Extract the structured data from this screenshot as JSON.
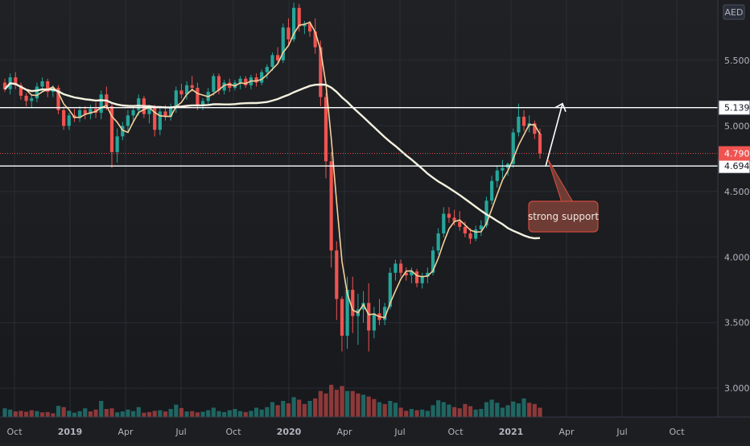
{
  "chart_data": {
    "type": "candlestick",
    "currency": "AED",
    "x_ticks": [
      "Oct",
      "2019",
      "Apr",
      "Jul",
      "Oct",
      "2020",
      "Apr",
      "Jul",
      "Oct",
      "2021",
      "Apr",
      "Jul",
      "Oct"
    ],
    "y_ticks": [
      "5.500",
      "5.000",
      "4.500",
      "4.000",
      "3.500",
      "3.000"
    ],
    "ylim": [
      2.78,
      5.96
    ],
    "horizontal_levels": [
      {
        "value": 5.139,
        "label": "5.139"
      },
      {
        "value": 4.694,
        "label": "4.694"
      }
    ],
    "last_price": {
      "value": 4.79,
      "label": "4.790"
    },
    "annotation": {
      "text": "strong support"
    },
    "candles": [
      [
        5.33,
        5.36,
        5.26,
        5.28
      ],
      [
        5.28,
        5.4,
        5.24,
        5.37
      ],
      [
        5.37,
        5.41,
        5.28,
        5.31
      ],
      [
        5.31,
        5.33,
        5.2,
        5.23
      ],
      [
        5.23,
        5.25,
        5.15,
        5.19
      ],
      [
        5.19,
        5.23,
        5.14,
        5.21
      ],
      [
        5.21,
        5.33,
        5.18,
        5.3
      ],
      [
        5.3,
        5.37,
        5.26,
        5.34
      ],
      [
        5.34,
        5.36,
        5.22,
        5.26
      ],
      [
        5.26,
        5.31,
        5.22,
        5.29
      ],
      [
        5.29,
        5.31,
        5.09,
        5.12
      ],
      [
        5.12,
        5.15,
        4.97,
        5.0
      ],
      [
        5.0,
        5.1,
        4.97,
        5.08
      ],
      [
        5.08,
        5.13,
        5.03,
        5.06
      ],
      [
        5.06,
        5.15,
        5.03,
        5.12
      ],
      [
        5.12,
        5.15,
        5.05,
        5.09
      ],
      [
        5.09,
        5.16,
        5.05,
        5.13
      ],
      [
        5.13,
        5.18,
        5.06,
        5.1
      ],
      [
        5.1,
        5.27,
        5.05,
        5.24
      ],
      [
        5.24,
        5.3,
        5.12,
        5.15
      ],
      [
        5.15,
        5.17,
        4.68,
        4.8
      ],
      [
        4.8,
        4.98,
        4.72,
        4.92
      ],
      [
        4.92,
        5.03,
        4.89,
        5.0
      ],
      [
        5.0,
        5.12,
        4.95,
        5.08
      ],
      [
        5.08,
        5.16,
        5.02,
        5.12
      ],
      [
        5.12,
        5.24,
        5.08,
        5.21
      ],
      [
        5.21,
        5.23,
        5.06,
        5.09
      ],
      [
        5.09,
        5.16,
        5.02,
        5.14
      ],
      [
        5.14,
        5.16,
        4.92,
        4.97
      ],
      [
        4.97,
        5.14,
        4.93,
        5.11
      ],
      [
        5.11,
        5.16,
        5.04,
        5.07
      ],
      [
        5.07,
        5.17,
        5.04,
        5.14
      ],
      [
        5.14,
        5.3,
        5.1,
        5.27
      ],
      [
        5.27,
        5.32,
        5.21,
        5.24
      ],
      [
        5.24,
        5.34,
        5.2,
        5.31
      ],
      [
        5.31,
        5.38,
        5.26,
        5.29
      ],
      [
        5.29,
        5.33,
        5.12,
        5.15
      ],
      [
        5.15,
        5.21,
        5.12,
        5.19
      ],
      [
        5.19,
        5.29,
        5.16,
        5.26
      ],
      [
        5.26,
        5.4,
        5.23,
        5.38
      ],
      [
        5.38,
        5.4,
        5.24,
        5.27
      ],
      [
        5.27,
        5.35,
        5.24,
        5.33
      ],
      [
        5.33,
        5.36,
        5.26,
        5.29
      ],
      [
        5.29,
        5.35,
        5.27,
        5.33
      ],
      [
        5.33,
        5.38,
        5.28,
        5.36
      ],
      [
        5.36,
        5.38,
        5.29,
        5.31
      ],
      [
        5.31,
        5.39,
        5.28,
        5.37
      ],
      [
        5.37,
        5.4,
        5.3,
        5.33
      ],
      [
        5.33,
        5.43,
        5.31,
        5.41
      ],
      [
        5.41,
        5.47,
        5.36,
        5.45
      ],
      [
        5.45,
        5.56,
        5.42,
        5.54
      ],
      [
        5.54,
        5.6,
        5.47,
        5.5
      ],
      [
        5.5,
        5.78,
        5.48,
        5.75
      ],
      [
        5.75,
        5.82,
        5.62,
        5.66
      ],
      [
        5.66,
        5.94,
        5.64,
        5.9
      ],
      [
        5.9,
        5.93,
        5.72,
        5.76
      ],
      [
        5.76,
        5.8,
        5.7,
        5.78
      ],
      [
        5.78,
        5.8,
        5.68,
        5.72
      ],
      [
        5.72,
        5.82,
        5.55,
        5.6
      ],
      [
        5.6,
        5.65,
        5.15,
        5.22
      ],
      [
        5.22,
        5.25,
        4.6,
        4.73
      ],
      [
        4.73,
        4.8,
        3.92,
        4.05
      ],
      [
        4.05,
        4.12,
        3.52,
        3.68
      ],
      [
        3.68,
        3.7,
        3.28,
        3.4
      ],
      [
        3.4,
        3.85,
        3.3,
        3.75
      ],
      [
        3.75,
        3.85,
        3.42,
        3.55
      ],
      [
        3.55,
        3.72,
        3.33,
        3.6
      ],
      [
        3.6,
        3.74,
        3.5,
        3.65
      ],
      [
        3.65,
        3.8,
        3.28,
        3.44
      ],
      [
        3.44,
        3.62,
        3.38,
        3.57
      ],
      [
        3.57,
        3.68,
        3.48,
        3.52
      ],
      [
        3.52,
        3.65,
        3.48,
        3.62
      ],
      [
        3.62,
        3.92,
        3.6,
        3.88
      ],
      [
        3.88,
        3.98,
        3.82,
        3.95
      ],
      [
        3.95,
        3.98,
        3.85,
        3.88
      ],
      [
        3.88,
        3.92,
        3.82,
        3.86
      ],
      [
        3.86,
        3.92,
        3.8,
        3.89
      ],
      [
        3.89,
        3.91,
        3.77,
        3.8
      ],
      [
        3.8,
        3.88,
        3.76,
        3.85
      ],
      [
        3.85,
        3.92,
        3.8,
        3.88
      ],
      [
        3.88,
        4.08,
        3.86,
        4.05
      ],
      [
        4.05,
        4.22,
        4.02,
        4.18
      ],
      [
        4.18,
        4.38,
        4.15,
        4.33
      ],
      [
        4.33,
        4.38,
        4.26,
        4.3
      ],
      [
        4.3,
        4.36,
        4.24,
        4.27
      ],
      [
        4.27,
        4.35,
        4.2,
        4.23
      ],
      [
        4.23,
        4.27,
        4.15,
        4.18
      ],
      [
        4.18,
        4.22,
        4.1,
        4.14
      ],
      [
        4.14,
        4.24,
        4.12,
        4.21
      ],
      [
        4.21,
        4.28,
        4.16,
        4.24
      ],
      [
        4.24,
        4.46,
        4.22,
        4.43
      ],
      [
        4.43,
        4.62,
        4.4,
        4.58
      ],
      [
        4.58,
        4.7,
        4.53,
        4.66
      ],
      [
        4.66,
        4.74,
        4.6,
        4.68
      ],
      [
        4.68,
        4.72,
        4.62,
        4.71
      ],
      [
        4.71,
        4.98,
        4.68,
        4.95
      ],
      [
        4.95,
        5.17,
        4.92,
        5.07
      ],
      [
        5.07,
        5.12,
        4.96,
        5.0
      ],
      [
        5.0,
        5.08,
        4.95,
        5.02
      ],
      [
        5.02,
        5.04,
        4.9,
        4.94
      ],
      [
        4.94,
        4.98,
        4.75,
        4.79
      ]
    ],
    "volumes": [
      [
        140,
        1
      ],
      [
        120,
        1
      ],
      [
        90,
        0
      ],
      [
        100,
        0
      ],
      [
        85,
        0
      ],
      [
        110,
        0
      ],
      [
        95,
        1
      ],
      [
        75,
        0
      ],
      [
        80,
        0
      ],
      [
        60,
        0
      ],
      [
        180,
        1
      ],
      [
        160,
        0
      ],
      [
        100,
        1
      ],
      [
        70,
        1
      ],
      [
        95,
        1
      ],
      [
        140,
        1
      ],
      [
        90,
        0
      ],
      [
        120,
        0
      ],
      [
        260,
        1
      ],
      [
        130,
        0
      ],
      [
        140,
        0
      ],
      [
        75,
        1
      ],
      [
        90,
        1
      ],
      [
        120,
        1
      ],
      [
        95,
        1
      ],
      [
        160,
        1
      ],
      [
        70,
        0
      ],
      [
        80,
        0
      ],
      [
        100,
        0
      ],
      [
        110,
        1
      ],
      [
        90,
        0
      ],
      [
        130,
        1
      ],
      [
        200,
        1
      ],
      [
        145,
        0
      ],
      [
        90,
        1
      ],
      [
        95,
        0
      ],
      [
        75,
        0
      ],
      [
        85,
        1
      ],
      [
        110,
        1
      ],
      [
        150,
        1
      ],
      [
        95,
        1
      ],
      [
        80,
        1
      ],
      [
        110,
        1
      ],
      [
        130,
        1
      ],
      [
        95,
        1
      ],
      [
        80,
        0
      ],
      [
        100,
        1
      ],
      [
        150,
        1
      ],
      [
        120,
        1
      ],
      [
        160,
        1
      ],
      [
        240,
        1
      ],
      [
        190,
        0
      ],
      [
        260,
        1
      ],
      [
        220,
        0
      ],
      [
        320,
        1
      ],
      [
        280,
        0
      ],
      [
        210,
        0
      ],
      [
        260,
        1
      ],
      [
        300,
        0
      ],
      [
        420,
        0
      ],
      [
        380,
        0
      ],
      [
        520,
        0
      ],
      [
        440,
        0
      ],
      [
        500,
        0
      ],
      [
        420,
        1
      ],
      [
        420,
        0
      ],
      [
        380,
        0
      ],
      [
        360,
        1
      ],
      [
        330,
        0
      ],
      [
        290,
        0
      ],
      [
        240,
        1
      ],
      [
        210,
        0
      ],
      [
        260,
        1
      ],
      [
        230,
        1
      ],
      [
        150,
        0
      ],
      [
        100,
        0
      ],
      [
        130,
        1
      ],
      [
        110,
        0
      ],
      [
        120,
        1
      ],
      [
        100,
        1
      ],
      [
        190,
        1
      ],
      [
        270,
        1
      ],
      [
        240,
        1
      ],
      [
        200,
        1
      ],
      [
        160,
        0
      ],
      [
        140,
        0
      ],
      [
        210,
        0
      ],
      [
        175,
        0
      ],
      [
        120,
        1
      ],
      [
        130,
        1
      ],
      [
        240,
        1
      ],
      [
        280,
        1
      ],
      [
        230,
        1
      ],
      [
        150,
        1
      ],
      [
        190,
        1
      ],
      [
        250,
        1
      ],
      [
        220,
        1
      ],
      [
        300,
        1
      ],
      [
        230,
        0
      ],
      [
        210,
        0
      ],
      [
        150,
        0
      ]
    ]
  },
  "colors": {
    "up": "#26a69a",
    "down": "#ef5350",
    "ma_fast": "#f5cf9a",
    "ma_slow": "#f4f1de",
    "level_line": "#ffffff",
    "last_price_line": "#ef5350",
    "annotation_bg": "#6e3c34",
    "annotation_border": "#cc4a3d"
  }
}
